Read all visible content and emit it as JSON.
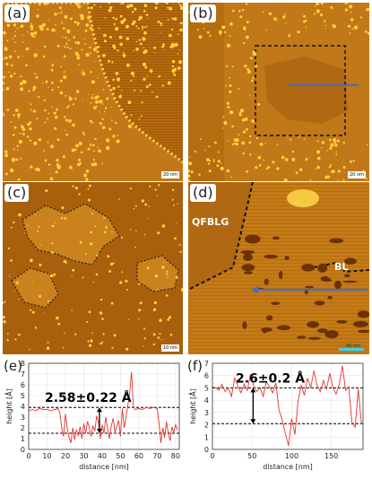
{
  "panels": {
    "a": {
      "label": "(a)",
      "scale": "20 nm"
    },
    "b": {
      "label": "(b)",
      "scale": "20 nm"
    },
    "c": {
      "label": "(c)",
      "scale": "10 nm"
    },
    "d": {
      "label": "(d)",
      "scale": "50 nm",
      "tag_qfblg": "QFBLG",
      "tag_bl": "BL"
    }
  },
  "colors": {
    "profile_line": "#e8322e",
    "arrow_line": "#3b6fd6",
    "stm_dark": "#8a4a05",
    "stm_light": "#f2c024"
  },
  "chart_data": [
    {
      "type": "line",
      "label": "(e)",
      "xlabel": "distance [nm]",
      "ylabel": "height [Å]",
      "xlim": [
        0,
        82
      ],
      "ylim": [
        0,
        8
      ],
      "xticks": [
        0,
        10,
        20,
        30,
        40,
        50,
        60,
        70,
        80
      ],
      "yticks": [
        0,
        1,
        2,
        3,
        4,
        5,
        6,
        7,
        8
      ],
      "annotation": "2.58±0.22 Å",
      "reference_levels": [
        3.9,
        1.5
      ],
      "x": [
        0,
        2,
        4,
        6,
        8,
        10,
        12,
        14,
        16,
        17,
        18,
        19,
        20,
        21,
        22,
        23,
        24,
        25,
        26,
        27,
        28,
        29,
        30,
        31,
        32,
        33,
        34,
        35,
        36,
        37,
        38,
        39,
        40,
        41,
        42,
        43,
        44,
        45,
        46,
        47,
        48,
        49,
        50,
        51,
        52,
        53,
        54,
        55,
        56,
        57,
        58,
        60,
        62,
        64,
        66,
        68,
        70,
        71,
        72,
        73,
        74,
        75,
        76,
        77,
        78,
        79,
        80,
        81
      ],
      "y": [
        3.6,
        3.7,
        3.6,
        3.8,
        3.7,
        3.7,
        3.6,
        3.7,
        3.8,
        3.4,
        2.0,
        1.2,
        3.3,
        2.0,
        1.1,
        0.6,
        2.0,
        0.9,
        1.8,
        1.3,
        2.1,
        1.0,
        2.4,
        1.5,
        2.6,
        2.0,
        1.2,
        2.2,
        1.7,
        3.1,
        2.5,
        1.0,
        2.3,
        1.5,
        3.0,
        1.9,
        1.0,
        2.2,
        2.9,
        1.6,
        2.1,
        2.7,
        1.2,
        3.8,
        2.0,
        3.0,
        4.1,
        5.2,
        7.2,
        4.0,
        3.7,
        3.8,
        3.7,
        3.9,
        3.8,
        3.9,
        3.8,
        2.4,
        0.6,
        2.0,
        1.1,
        2.6,
        1.5,
        0.8,
        2.1,
        1.6,
        2.3,
        1.8
      ]
    },
    {
      "type": "line",
      "label": "(f)",
      "xlabel": "distance [nm]",
      "ylabel": "height [Å]",
      "xlim": [
        0,
        190
      ],
      "ylim": [
        0,
        7
      ],
      "xticks": [
        0,
        50,
        100,
        150
      ],
      "yticks": [
        0,
        1,
        2,
        3,
        4,
        5,
        6,
        7
      ],
      "annotation": "2.6±0.2 Å",
      "reference_levels": [
        5.0,
        2.1
      ],
      "x": [
        0,
        4,
        8,
        12,
        16,
        20,
        24,
        28,
        32,
        36,
        40,
        44,
        48,
        52,
        56,
        60,
        64,
        68,
        72,
        76,
        80,
        84,
        88,
        92,
        96,
        100,
        104,
        108,
        112,
        116,
        120,
        124,
        128,
        132,
        136,
        140,
        144,
        148,
        152,
        156,
        160,
        164,
        168,
        172,
        176,
        180,
        184,
        188
      ],
      "y": [
        5.1,
        5.0,
        4.8,
        5.3,
        4.7,
        5.0,
        4.3,
        5.8,
        5.2,
        4.6,
        5.3,
        4.8,
        6.1,
        5.2,
        4.7,
        5.0,
        4.3,
        5.5,
        5.1,
        4.6,
        5.4,
        3.2,
        2.4,
        1.3,
        0.3,
        2.5,
        1.2,
        3.9,
        5.2,
        4.4,
        5.8,
        5.0,
        6.4,
        5.2,
        4.7,
        5.6,
        4.9,
        6.2,
        5.0,
        4.5,
        5.3,
        6.8,
        4.8,
        5.1,
        2.2,
        1.8,
        4.9,
        2.1
      ]
    }
  ]
}
